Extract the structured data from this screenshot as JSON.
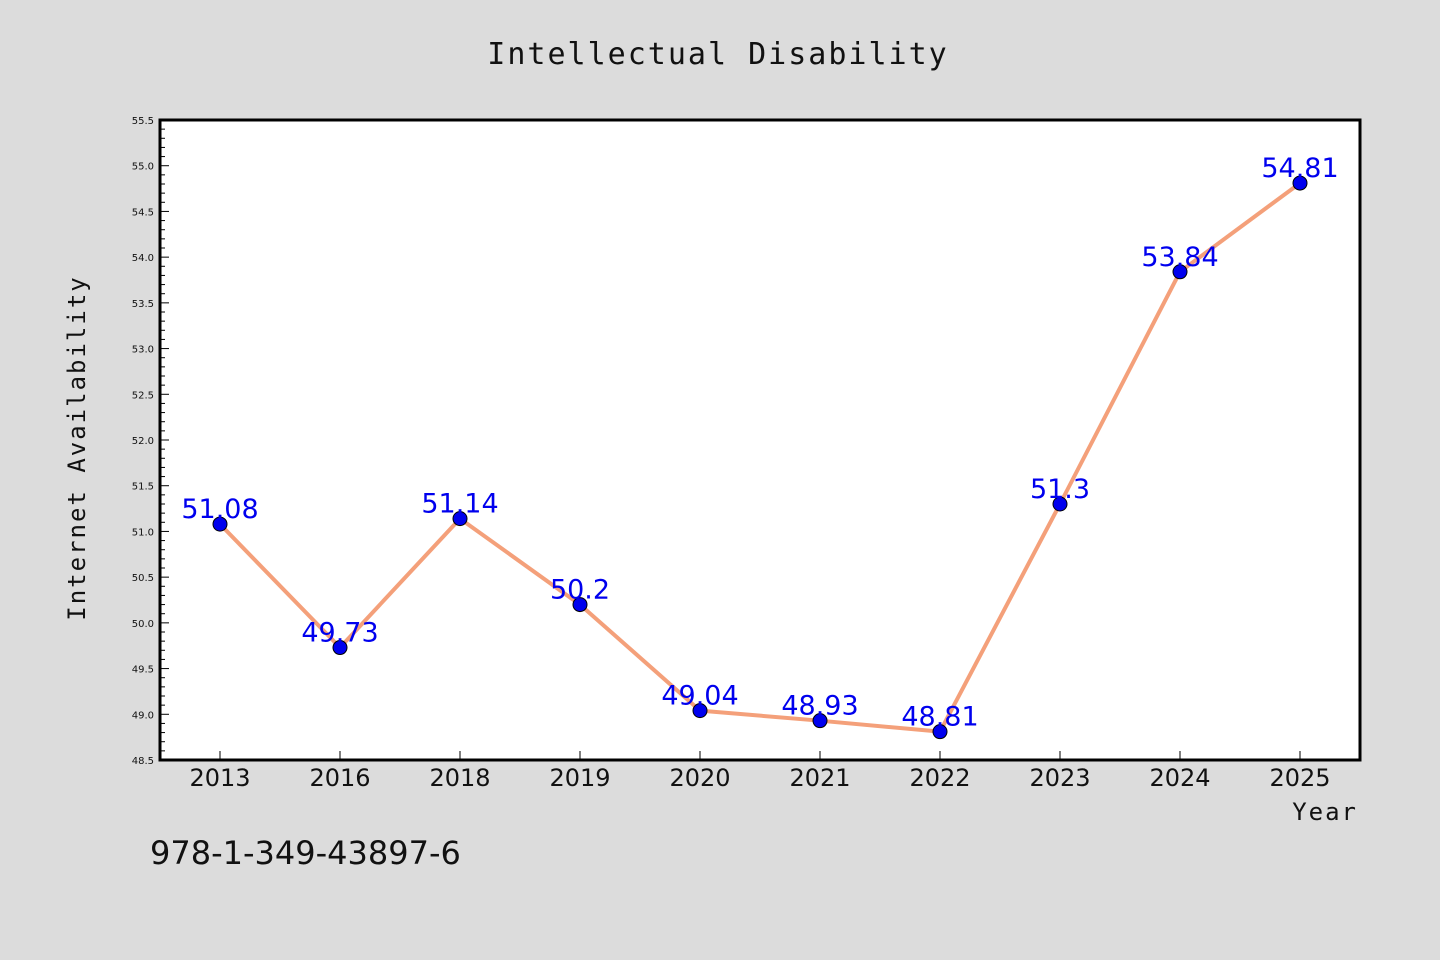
{
  "footnote": "978-1-349-43897-6",
  "colors": {
    "background": "#dcdcdc",
    "plot_background": "#ffffff",
    "line": "#f4a07a",
    "marker": "#0000ee",
    "data_label": "#0000ee"
  },
  "chart_data": {
    "type": "line",
    "title": "Intellectual Disability",
    "xlabel": "Year",
    "ylabel": "Internet Availability",
    "categories": [
      "2013",
      "2016",
      "2018",
      "2019",
      "2020",
      "2021",
      "2022",
      "2023",
      "2024",
      "2025"
    ],
    "values": [
      51.08,
      49.73,
      51.14,
      50.2,
      49.04,
      48.93,
      48.81,
      51.3,
      53.84,
      54.81
    ],
    "data_labels": [
      "51.08",
      "49.73",
      "51.14",
      "50.2",
      "49.04",
      "48.93",
      "48.81",
      "51.3",
      "53.84",
      "54.81"
    ],
    "ylim": [
      48.5,
      55.5
    ],
    "yticks": [
      "48.5",
      "49.0",
      "49.5",
      "50.0",
      "50.5",
      "51.0",
      "51.5",
      "52.0",
      "52.5",
      "53.0",
      "53.5",
      "54.0",
      "54.5",
      "55.0",
      "55.5"
    ],
    "grid": false,
    "legend": "none",
    "marker": "circle"
  }
}
